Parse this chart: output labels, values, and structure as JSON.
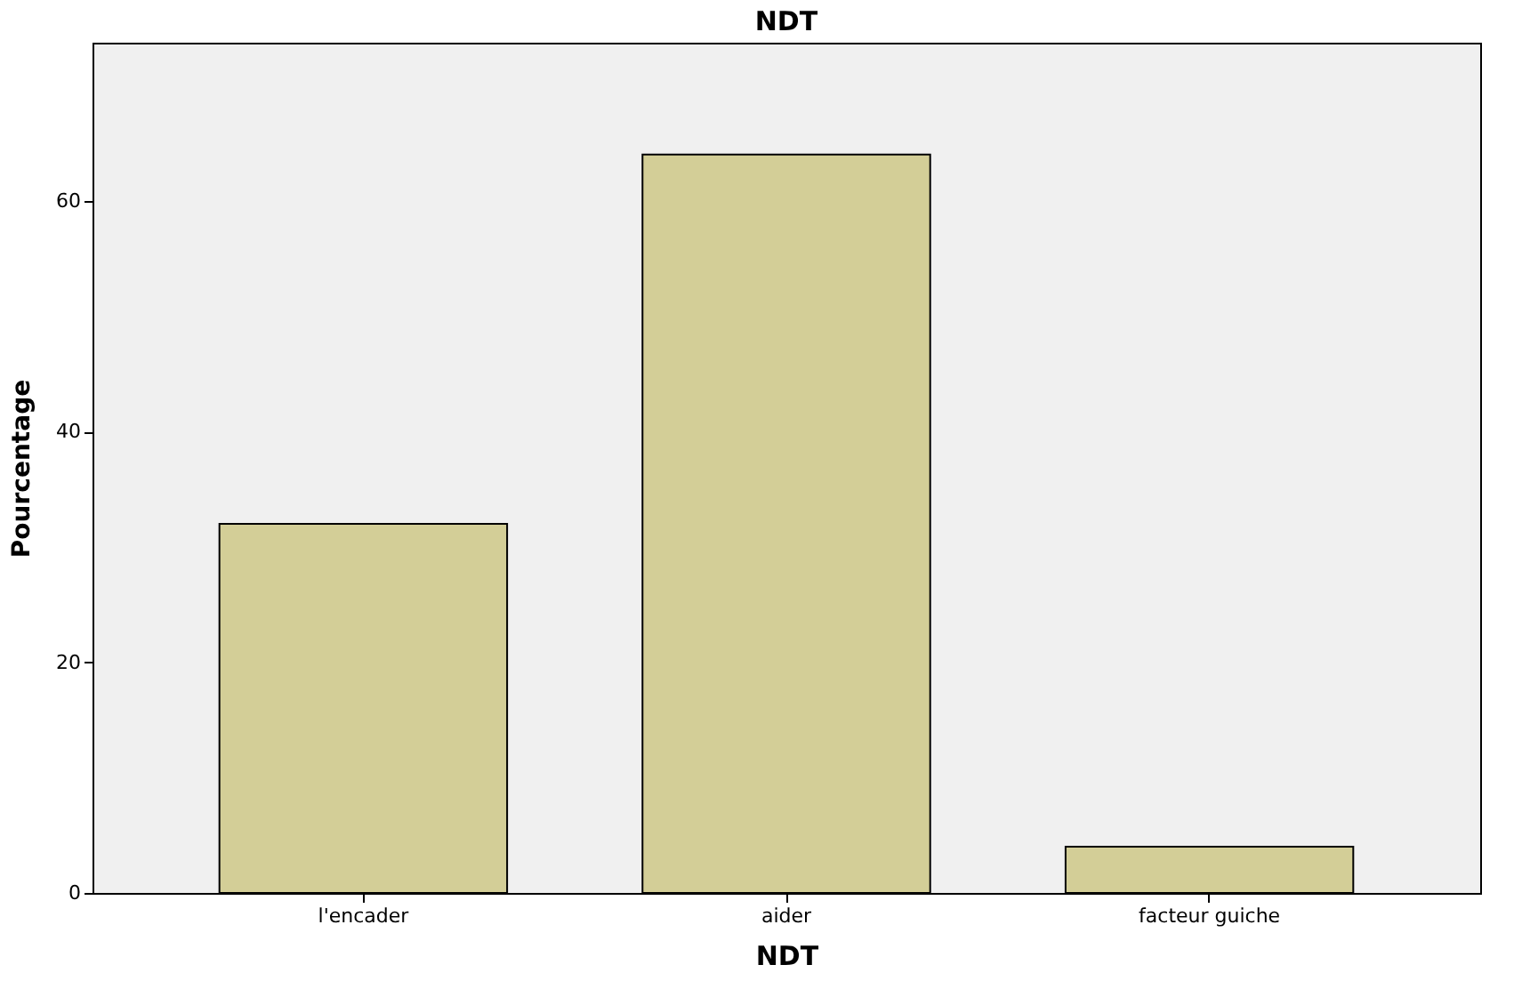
{
  "chart_data": {
    "type": "bar",
    "title": "NDT",
    "xlabel": "NDT",
    "ylabel": "Pourcentage",
    "categories": [
      "l'encader",
      "aider",
      "facteur guiche"
    ],
    "values": [
      32,
      64,
      4
    ],
    "color": "#d3ce97",
    "ylim": [
      0,
      73.7
    ],
    "yticks": [
      0,
      20,
      40,
      60
    ],
    "grid": false
  }
}
